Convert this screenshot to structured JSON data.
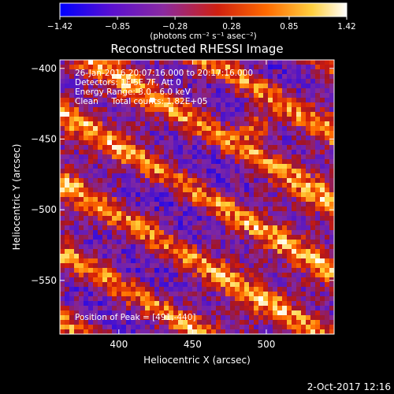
{
  "chart_data": {
    "type": "heatmap",
    "title": "Reconstructed RHESSI Image",
    "xlabel": "Heliocentric X (arcsec)",
    "ylabel": "Heliocentric Y (arcsec)",
    "xlim": [
      360,
      546
    ],
    "ylim": [
      -588,
      -394
    ],
    "xticks": [
      400,
      450,
      500
    ],
    "yticks": [
      -400,
      -450,
      -500,
      -550
    ],
    "xtick_labels": [
      "400",
      "450",
      "500"
    ],
    "ytick_labels": [
      "−400",
      "−450",
      "−500",
      "−550"
    ],
    "colorbar": {
      "min": -1.42,
      "max": 1.42,
      "ticks": [
        -1.42,
        -0.85,
        -0.28,
        0.28,
        0.85,
        1.42
      ],
      "tick_labels": [
        "−1.42",
        "−0.85",
        "−0.28",
        "0.28",
        "0.85",
        "1.42"
      ],
      "unit_label": "(photons cm⁻² s⁻¹ asec⁻²)",
      "colors": [
        "#0000ff",
        "#6a1fbf",
        "#9a2a90",
        "#d33000",
        "#ff8a00",
        "#fff060",
        "#ffffff"
      ]
    },
    "peak_position": [
      491,
      -440
    ],
    "grid": false
  },
  "info": {
    "time_range": "26-Jan-2016 20:07:16.000 to 20:17:16.000",
    "detectors": "Detectors: 1F 5F 7F, Att 0",
    "energy_range": "Energy Range: 3.0 - 6.0 keV",
    "method": "Clean     Total counts: 1.82E+05",
    "peak_text": "Position of Peak = [491,-440]"
  },
  "footer": {
    "date": "2-Oct-2017 12:16"
  }
}
